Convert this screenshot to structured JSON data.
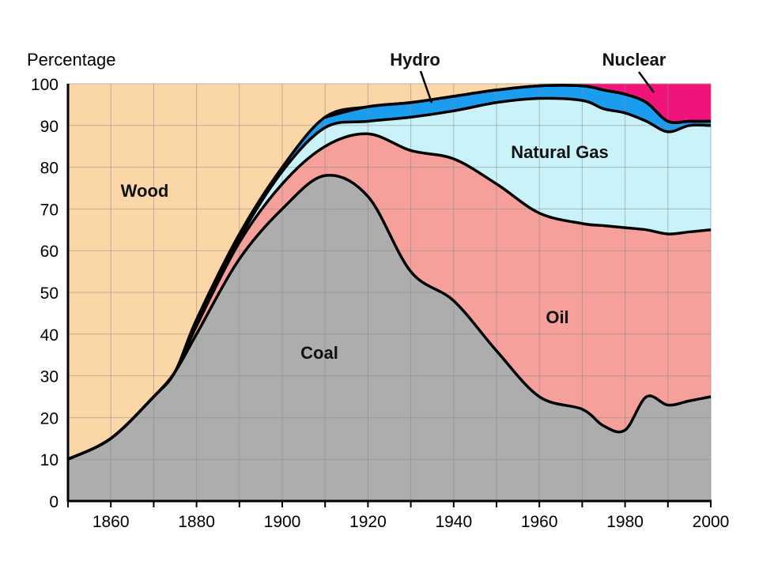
{
  "chart_data": {
    "type": "area",
    "title": "",
    "ylabel": "Percentage",
    "xlabel": "",
    "xlim": [
      1850,
      2000
    ],
    "ylim": [
      0,
      100
    ],
    "x_ticks": [
      1860,
      1880,
      1900,
      1920,
      1940,
      1960,
      1980,
      2000
    ],
    "y_ticks": [
      0,
      10,
      20,
      30,
      40,
      50,
      60,
      70,
      80,
      90,
      100
    ],
    "grid": true,
    "colors": {
      "Wood": "#fbd7a8",
      "Coal": "#adadad",
      "Oil": "#f5a09a",
      "Natural Gas": "#c9f3f8",
      "Hydro": "#1a9cef",
      "Nuclear": "#f0147a"
    },
    "x": [
      1850,
      1860,
      1870,
      1875,
      1880,
      1890,
      1900,
      1910,
      1920,
      1930,
      1940,
      1950,
      1960,
      1970,
      1975,
      1980,
      1985,
      1990,
      1995,
      2000
    ],
    "series": [
      {
        "name": "Coal",
        "cumulative_top": [
          10,
          15,
          25,
          31,
          40,
          58,
          70,
          78,
          73,
          55,
          48,
          36,
          25,
          22,
          18,
          17,
          25,
          23,
          24,
          25
        ]
      },
      {
        "name": "Oil",
        "cumulative_top": [
          10,
          15,
          25,
          31,
          42,
          62,
          76,
          85,
          88,
          84,
          82,
          76,
          69,
          66.5,
          66,
          65.5,
          65,
          64,
          64.5,
          65
        ]
      },
      {
        "name": "Natural Gas",
        "cumulative_top": [
          10,
          15,
          25,
          31,
          43,
          63,
          79,
          89.5,
          91,
          92,
          93.5,
          95.5,
          96.5,
          96,
          94,
          93,
          91,
          88.5,
          90,
          90
        ]
      },
      {
        "name": "Hydro",
        "cumulative_top": [
          10,
          15,
          25,
          31,
          43.5,
          64,
          80,
          92,
          94.5,
          95.5,
          97,
          98.5,
          99.5,
          99.5,
          98.5,
          97.5,
          95.5,
          91,
          91,
          91
        ]
      },
      {
        "name": "Nuclear",
        "cumulative_top": [
          10,
          15,
          25,
          31,
          43.5,
          64,
          80,
          92,
          94.5,
          95.5,
          97,
          98.5,
          99.5,
          100,
          100,
          100,
          100,
          100,
          100,
          100
        ]
      },
      {
        "name": "Wood",
        "cumulative_top": [
          100,
          100,
          100,
          100,
          100,
          100,
          100,
          100,
          100,
          100,
          100,
          100,
          100,
          100,
          100,
          100,
          100,
          100,
          100,
          100
        ]
      }
    ],
    "labels": {
      "wood": "Wood",
      "coal": "Coal",
      "oil": "Oil",
      "natural_gas": "Natural Gas",
      "hydro": "Hydro",
      "nuclear": "Nuclear"
    }
  }
}
